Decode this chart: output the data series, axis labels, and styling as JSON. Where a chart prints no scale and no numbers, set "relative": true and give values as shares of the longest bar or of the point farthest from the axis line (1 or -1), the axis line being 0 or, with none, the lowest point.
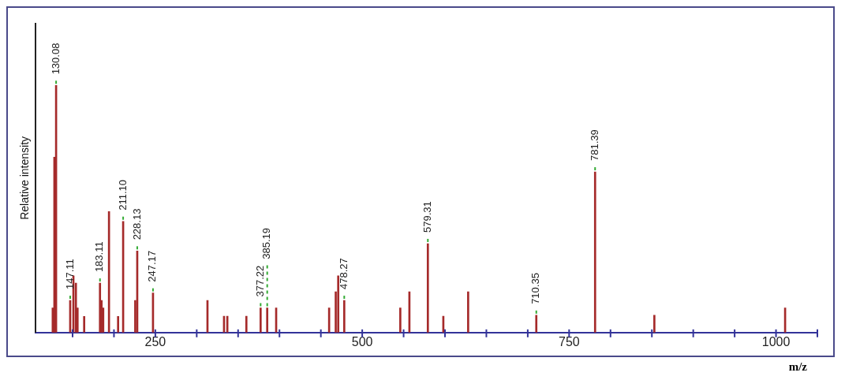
{
  "chart_data": {
    "type": "bar",
    "relative": true,
    "xlabel": "m/z",
    "ylabel": "Relative intensity",
    "color": "#a52a2a",
    "x": [
      126,
      128,
      130.08,
      147.11,
      151,
      154,
      156,
      164,
      183.11,
      185,
      187,
      194,
      205,
      211.1,
      225.7,
      228.13,
      247.17,
      313,
      333,
      337,
      360,
      377.22,
      385.19,
      396,
      460,
      468,
      471,
      478.27,
      546,
      557,
      579.31,
      598,
      628,
      710.35,
      781.39,
      853,
      1011
    ],
    "values": [
      0.1,
      0.71,
      1.0,
      0.13,
      0.23,
      0.2,
      0.1,
      0.065,
      0.2,
      0.13,
      0.1,
      0.49,
      0.065,
      0.45,
      0.13,
      0.33,
      0.16,
      0.13,
      0.066,
      0.066,
      0.066,
      0.1,
      0.1,
      0.1,
      0.1,
      0.165,
      0.23,
      0.13,
      0.1,
      0.165,
      0.36,
      0.066,
      0.165,
      0.07,
      0.65,
      0.07,
      0.1
    ],
    "xlim": [
      105,
      1050
    ],
    "xticks": [
      {
        "value": 150,
        "label": null
      },
      {
        "value": 200,
        "label": null
      },
      250,
      {
        "value": 300,
        "label": null
      },
      {
        "value": 350,
        "label": null
      },
      {
        "value": 400,
        "label": null
      },
      {
        "value": 450,
        "label": null
      },
      500,
      {
        "value": 550,
        "label": null
      },
      {
        "value": 600,
        "label": null
      },
      {
        "value": 650,
        "label": null
      },
      {
        "value": 700,
        "label": null
      },
      750,
      {
        "value": 800,
        "label": null
      },
      {
        "value": 850,
        "label": null
      },
      {
        "value": 900,
        "label": null
      },
      {
        "value": 950,
        "label": null
      },
      1000,
      {
        "value": 1050,
        "label": null
      }
    ],
    "annotations": [
      {
        "text": "130.08",
        "x": 130.08,
        "y": 1.0
      },
      {
        "text": "147.11",
        "x": 147.11,
        "y": 0.13
      },
      {
        "text": "183.11",
        "x": 183.11,
        "y": 0.2
      },
      {
        "text": "211.10",
        "x": 211.1,
        "y": 0.45
      },
      {
        "text": "228.13",
        "x": 228.13,
        "y": 0.33
      },
      {
        "text": "247.17",
        "x": 247.17,
        "y": 0.16
      },
      {
        "text": "377.22",
        "x": 377.22,
        "y": 0.1
      },
      {
        "text": "385.19",
        "x": 385.19,
        "y": 0.1
      },
      {
        "text": "478.27",
        "x": 478.27,
        "y": 0.13
      },
      {
        "text": "579.31",
        "x": 579.31,
        "y": 0.36
      },
      {
        "text": "710.35",
        "x": 710.35,
        "y": 0.07
      },
      {
        "text": "781.39",
        "x": 781.39,
        "y": 0.65
      }
    ],
    "legend": false,
    "grid": false
  }
}
